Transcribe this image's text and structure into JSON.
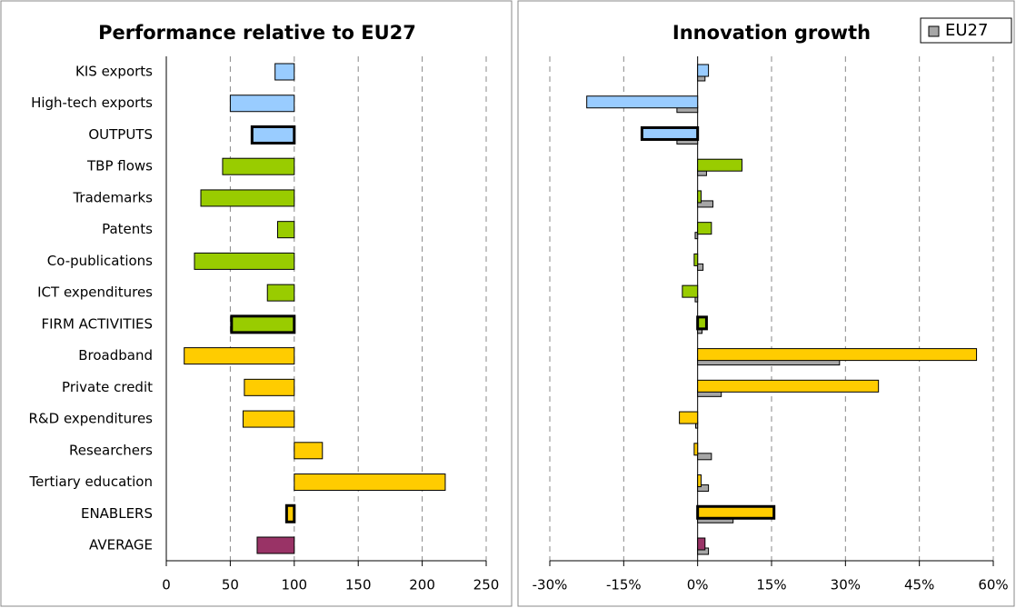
{
  "chart_data": [
    {
      "type": "bar",
      "title": "Performance relative to EU27",
      "categories": [
        "KIS exports",
        "High-tech exports",
        "OUTPUTS",
        "TBP flows",
        "Trademarks",
        "Patents",
        "Co-publications",
        "ICT expenditures",
        "FIRM ACTIVITIES",
        "Broadband",
        "Private credit",
        "R&D expenditures",
        "Researchers",
        "Tertiary education",
        "ENABLERS",
        "AVERAGE"
      ],
      "values": [
        85,
        50,
        67,
        44,
        27,
        87,
        22,
        79,
        51,
        14,
        61,
        60,
        122,
        218,
        94,
        71
      ],
      "baseline": 100,
      "colors": [
        "#99ccff",
        "#99ccff",
        "#99ccff",
        "#99cc00",
        "#99cc00",
        "#99cc00",
        "#99cc00",
        "#99cc00",
        "#99cc00",
        "#ffcc00",
        "#ffcc00",
        "#ffcc00",
        "#ffcc00",
        "#ffcc00",
        "#ffcc00",
        "#993366"
      ],
      "outlined": [
        false,
        false,
        true,
        false,
        false,
        false,
        false,
        false,
        true,
        false,
        false,
        false,
        false,
        false,
        true,
        false
      ],
      "xlim": [
        0,
        250
      ],
      "xticks": [
        0,
        50,
        100,
        150,
        200,
        250
      ],
      "grid": true
    },
    {
      "type": "bar",
      "title": "Innovation growth",
      "series": [
        {
          "values": [
            2.2,
            -22.5,
            -11.3,
            9,
            0.7,
            2.8,
            -0.7,
            -3.1,
            1.8,
            56.6,
            36.7,
            -3.7,
            -0.7,
            0.7,
            15.5,
            1.5
          ],
          "colors": [
            "#99ccff",
            "#99ccff",
            "#99ccff",
            "#99cc00",
            "#99cc00",
            "#99cc00",
            "#99cc00",
            "#99cc00",
            "#99cc00",
            "#ffcc00",
            "#ffcc00",
            "#ffcc00",
            "#ffcc00",
            "#ffcc00",
            "#ffcc00",
            "#993366"
          ],
          "outlined": [
            false,
            false,
            true,
            false,
            false,
            false,
            false,
            false,
            true,
            false,
            false,
            false,
            false,
            false,
            true,
            false
          ]
        },
        {
          "name": "EU27",
          "color": "#a6a6a6",
          "values": [
            1.5,
            -4.2,
            -4.2,
            1.8,
            3.1,
            -0.5,
            1.1,
            -0.5,
            0.9,
            28.8,
            4.8,
            -0.4,
            2.8,
            2.2,
            7.2,
            2.2
          ]
        }
      ],
      "legend": "top-right",
      "xlim": [
        -30,
        60
      ],
      "xticks": [
        {
          "value": -30,
          "label": "-30%"
        },
        {
          "value": -15,
          "label": "-15%"
        },
        {
          "value": 0,
          "label": "0%"
        },
        {
          "value": 15,
          "label": "15%"
        },
        {
          "value": 30,
          "label": "30%"
        },
        {
          "value": 45,
          "label": "45%"
        },
        {
          "value": 60,
          "label": "60%"
        }
      ],
      "grid": true
    }
  ]
}
